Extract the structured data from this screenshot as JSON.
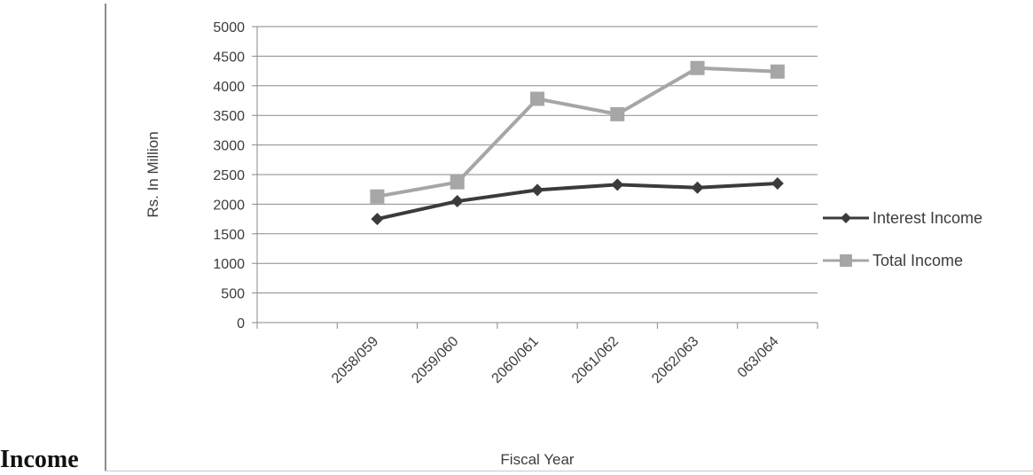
{
  "side_label": "Income",
  "chart_data": {
    "type": "line",
    "title": "",
    "xlabel": "Fiscal Year",
    "ylabel": "Rs. In Million",
    "ylim": [
      0,
      5000
    ],
    "yticks": [
      0,
      500,
      1000,
      1500,
      2000,
      2500,
      3000,
      3500,
      4000,
      4500,
      5000
    ],
    "grid": true,
    "legend_position": "right",
    "categories": [
      "2058/059",
      "2059/060",
      "2060/061",
      "2061/062",
      "2062/063",
      "063/064"
    ],
    "series": [
      {
        "name": "Interest Income",
        "values": [
          1750,
          2050,
          2240,
          2330,
          2280,
          2350
        ],
        "color": "#3b3b3b",
        "marker": "diamond"
      },
      {
        "name": "Total Income",
        "values": [
          2130,
          2370,
          3780,
          3520,
          4300,
          4240
        ],
        "color": "#a6a6a6",
        "marker": "square"
      }
    ]
  }
}
